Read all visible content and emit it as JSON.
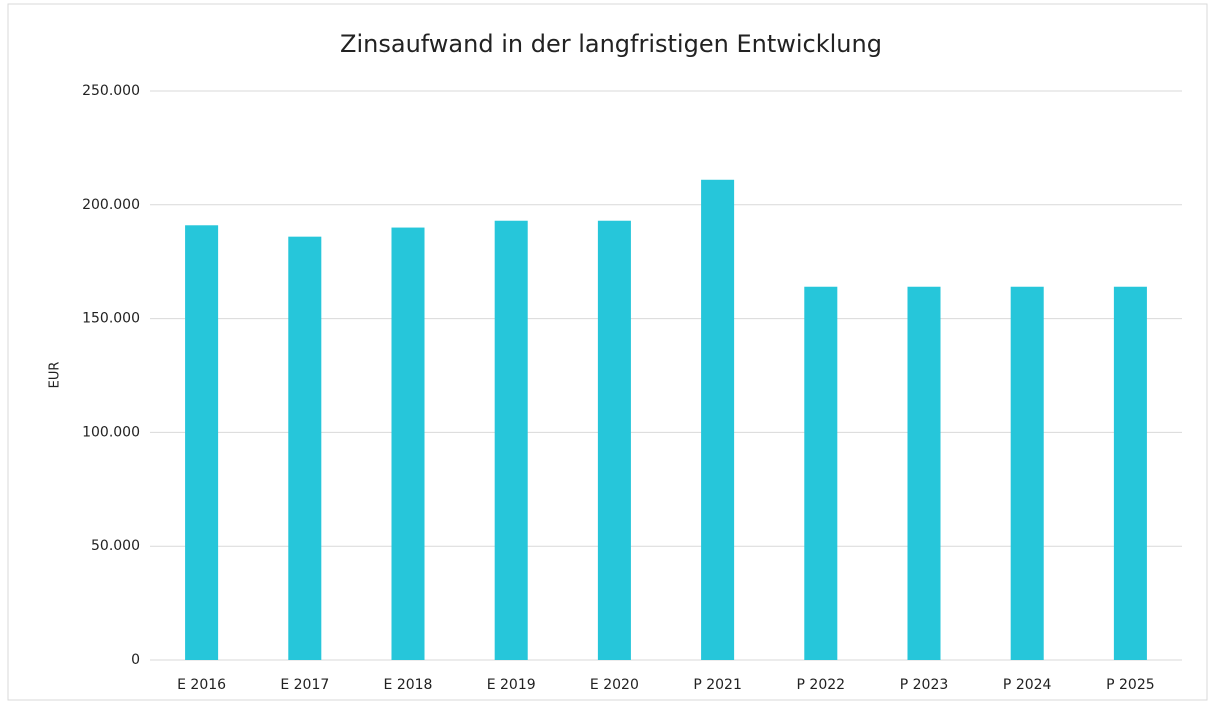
{
  "chart_data": {
    "type": "bar",
    "title": "Zinsaufwand in der langfristigen Entwicklung",
    "y_label": "EUR",
    "categories": [
      "E 2016",
      "E 2017",
      "E 2018",
      "E 2019",
      "E 2020",
      "P 2021",
      "P 2022",
      "P 2023",
      "P 2024",
      "P 2025"
    ],
    "values": [
      191000,
      186000,
      190000,
      193000,
      193000,
      211000,
      164000,
      164000,
      164000,
      164000
    ],
    "color": "#26c6da",
    "ylim": [
      0,
      250000
    ],
    "yticks": [
      0,
      {
        "value": 50000,
        "label": "50.000"
      },
      {
        "value": 100000,
        "label": "100.000"
      },
      {
        "value": 150000,
        "label": "150.000"
      },
      {
        "value": 200000,
        "label": "200.000"
      },
      {
        "value": 250000,
        "label": "250.000"
      }
    ],
    "grid": true
  }
}
